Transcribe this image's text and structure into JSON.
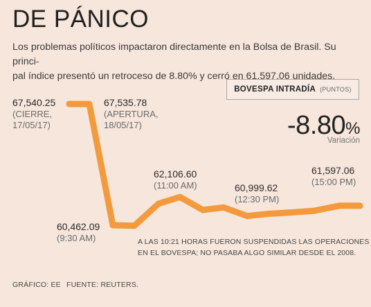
{
  "header": {
    "title": "DE PÁNICO",
    "subtitle_line1": "Los problemas políticos impactaron directamente en la Bolsa de Brasil. Su princi-",
    "subtitle_line2": "pal índice presentó un retroceso de 8.80% y cerró en 61,597.06 unidades."
  },
  "panel": {
    "name": "BOVESPA INTRADÍA",
    "unit": "(PUNTOS)",
    "change_value": "-8.80",
    "change_symbol": "%",
    "change_label": "Variación"
  },
  "colors": {
    "line": "#f39a3d",
    "background": "#f6e6dc"
  },
  "chart_data": {
    "type": "line",
    "series": [
      {
        "values": [
          67540.25,
          67535.78,
          60462.09,
          60430,
          61720,
          62106.6,
          61350,
          61500,
          60999.62,
          61130,
          61200,
          61300,
          61597.06,
          61597.06
        ]
      }
    ],
    "annotations": [
      {
        "index": 0,
        "value_text": "67,540.25",
        "line1": "(CIERRE,",
        "line2": "17/05/17)"
      },
      {
        "index": 1,
        "value_text": "67,535.78",
        "line1": "(APERTURA,",
        "line2": "18/05/17)"
      },
      {
        "index": 2,
        "value_text": "60,462.09",
        "line1": "(9:30 AM)"
      },
      {
        "index": 5,
        "value_text": "62,106.60",
        "line1": "(11:00 AM)"
      },
      {
        "index": 8,
        "value_text": "60,999.62",
        "line1": "(12:30 PM)"
      },
      {
        "index": 12,
        "value_text": "61,597.06",
        "line1": "(15:00 PM)"
      }
    ],
    "note_line1": "A LAS 10:21 HORAS FUERON SUSPENDIDAS LAS OPERACIONES",
    "note_line2": "EN EL BOVESPA; NO PASABA ALGO SIMILAR DESDE EL 2008."
  },
  "footer": {
    "credit": "GRÁFICO: EE",
    "source": "FUENTE: REUTERS."
  }
}
